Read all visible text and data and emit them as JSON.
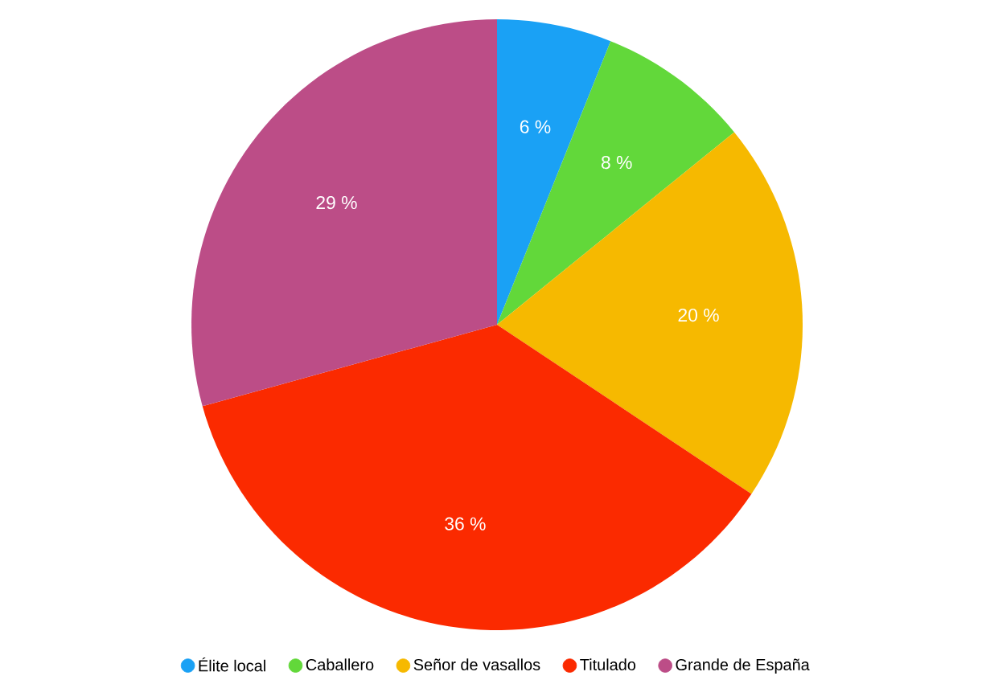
{
  "chart_data": {
    "type": "pie",
    "categories": [
      "Élite local",
      "Caballero",
      "Señor de vasallos",
      "Titulado",
      "Grande de España"
    ],
    "values": [
      6,
      8,
      20,
      36,
      29
    ],
    "colors": [
      "#1aa1f5",
      "#62d83a",
      "#f6b900",
      "#fb2a00",
      "#bc4d87"
    ],
    "value_labels": [
      "6 %",
      "8 %",
      "20 %",
      "36 %",
      "29 %"
    ],
    "legend": "bottom"
  }
}
